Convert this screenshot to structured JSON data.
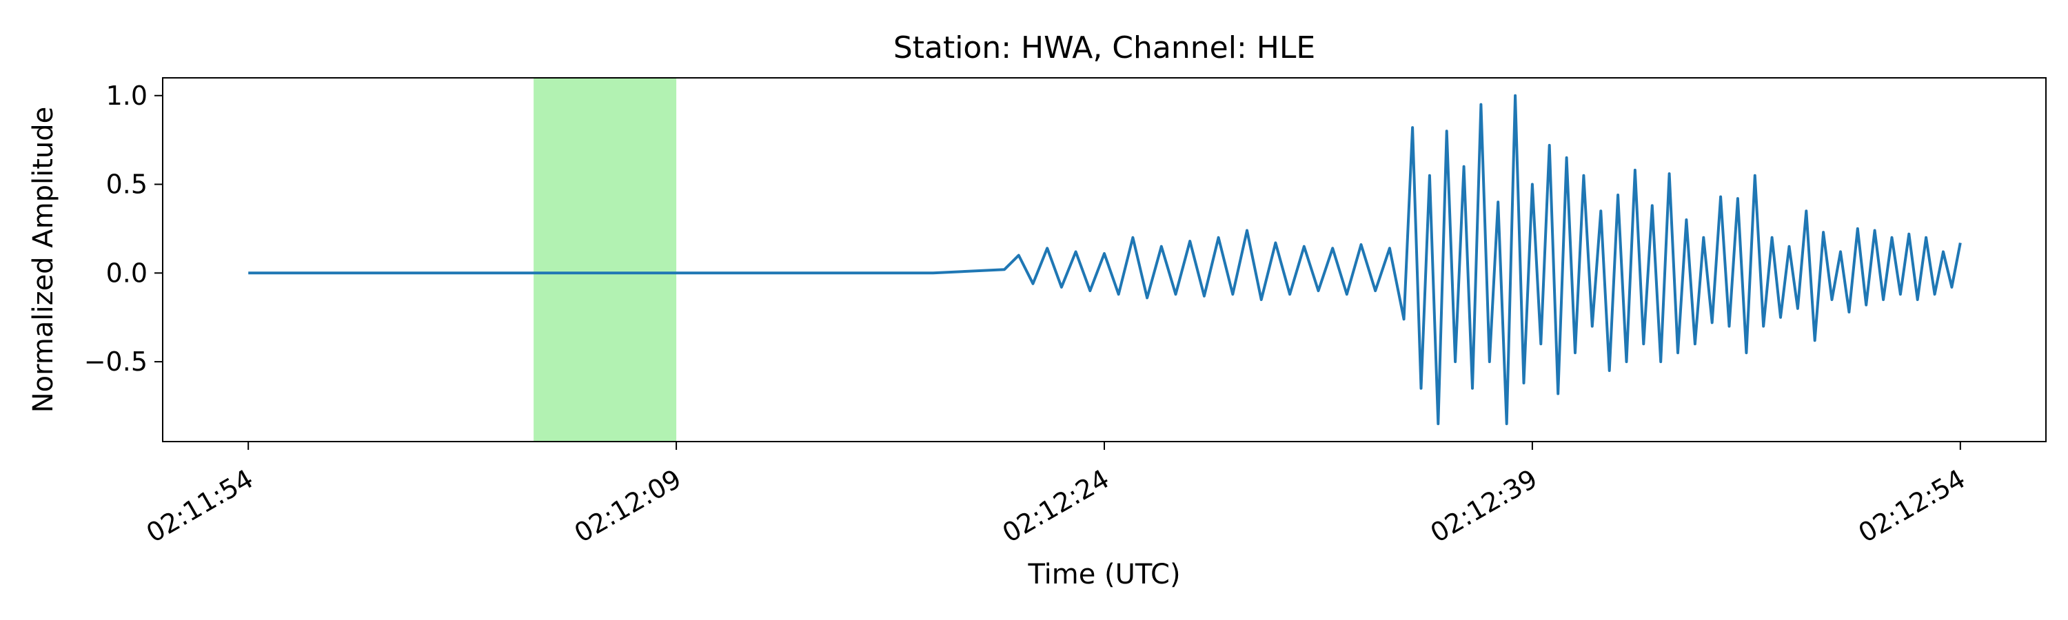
{
  "chart_data": {
    "type": "line",
    "title": "Station: HWA, Channel: HLE",
    "xlabel": "Time (UTC)",
    "ylabel": "Normalized Amplitude",
    "x_range": [
      "02:11:51",
      "02:12:57"
    ],
    "ylim": [
      -0.95,
      1.1
    ],
    "x_ticks": [
      "02:11:54",
      "02:12:09",
      "02:12:24",
      "02:12:39",
      "02:12:54"
    ],
    "y_ticks": [
      1.0,
      0.5,
      0.0,
      -0.5
    ],
    "y_tick_labels": [
      "1.0",
      "0.5",
      "0.0",
      "−0.5"
    ],
    "grid": false,
    "highlight": {
      "start": "02:12:04",
      "end": "02:12:09",
      "color": "#b2f2b2"
    },
    "series": [
      {
        "color": "#1f77b4",
        "points": [
          [
            "02:11:54",
            0.0
          ],
          [
            "02:12:00",
            0.0
          ],
          [
            "02:12:06",
            0.0
          ],
          [
            "02:12:12",
            0.0
          ],
          [
            "02:12:18",
            0.0
          ],
          [
            "02:12:20.5",
            0.02
          ],
          [
            "02:12:21",
            0.1
          ],
          [
            "02:12:21.5",
            -0.06
          ],
          [
            "02:12:22",
            0.14
          ],
          [
            "02:12:22.5",
            -0.08
          ],
          [
            "02:12:23",
            0.12
          ],
          [
            "02:12:23.5",
            -0.1
          ],
          [
            "02:12:24",
            0.11
          ],
          [
            "02:12:24.5",
            -0.12
          ],
          [
            "02:12:25",
            0.2
          ],
          [
            "02:12:25.5",
            -0.14
          ],
          [
            "02:12:26",
            0.15
          ],
          [
            "02:12:26.5",
            -0.12
          ],
          [
            "02:12:27",
            0.18
          ],
          [
            "02:12:27.5",
            -0.13
          ],
          [
            "02:12:28",
            0.2
          ],
          [
            "02:12:28.5",
            -0.12
          ],
          [
            "02:12:29",
            0.24
          ],
          [
            "02:12:29.5",
            -0.15
          ],
          [
            "02:12:30",
            0.17
          ],
          [
            "02:12:30.5",
            -0.12
          ],
          [
            "02:12:31",
            0.15
          ],
          [
            "02:12:31.5",
            -0.1
          ],
          [
            "02:12:32",
            0.14
          ],
          [
            "02:12:32.5",
            -0.12
          ],
          [
            "02:12:33",
            0.16
          ],
          [
            "02:12:33.5",
            -0.1
          ],
          [
            "02:12:34",
            0.14
          ],
          [
            "02:12:34.5",
            -0.26
          ],
          [
            "02:12:34.8",
            0.82
          ],
          [
            "02:12:35.1",
            -0.65
          ],
          [
            "02:12:35.4",
            0.55
          ],
          [
            "02:12:35.7",
            -0.85
          ],
          [
            "02:12:36",
            0.8
          ],
          [
            "02:12:36.3",
            -0.5
          ],
          [
            "02:12:36.6",
            0.6
          ],
          [
            "02:12:36.9",
            -0.65
          ],
          [
            "02:12:37.2",
            0.95
          ],
          [
            "02:12:37.5",
            -0.5
          ],
          [
            "02:12:37.8",
            0.4
          ],
          [
            "02:12:38.1",
            -0.85
          ],
          [
            "02:12:38.4",
            1.0
          ],
          [
            "02:12:38.7",
            -0.62
          ],
          [
            "02:12:39",
            0.5
          ],
          [
            "02:12:39.3",
            -0.4
          ],
          [
            "02:12:39.6",
            0.72
          ],
          [
            "02:12:39.9",
            -0.68
          ],
          [
            "02:12:40.2",
            0.65
          ],
          [
            "02:12:40.5",
            -0.45
          ],
          [
            "02:12:40.8",
            0.55
          ],
          [
            "02:12:41.1",
            -0.3
          ],
          [
            "02:12:41.4",
            0.35
          ],
          [
            "02:12:41.7",
            -0.55
          ],
          [
            "02:12:42",
            0.44
          ],
          [
            "02:12:42.3",
            -0.5
          ],
          [
            "02:12:42.6",
            0.58
          ],
          [
            "02:12:42.9",
            -0.4
          ],
          [
            "02:12:43.2",
            0.38
          ],
          [
            "02:12:43.5",
            -0.5
          ],
          [
            "02:12:43.8",
            0.56
          ],
          [
            "02:12:44.1",
            -0.45
          ],
          [
            "02:12:44.4",
            0.3
          ],
          [
            "02:12:44.7",
            -0.4
          ],
          [
            "02:12:45",
            0.2
          ],
          [
            "02:12:45.3",
            -0.28
          ],
          [
            "02:12:45.6",
            0.43
          ],
          [
            "02:12:45.9",
            -0.3
          ],
          [
            "02:12:46.2",
            0.42
          ],
          [
            "02:12:46.5",
            -0.45
          ],
          [
            "02:12:46.8",
            0.55
          ],
          [
            "02:12:47.1",
            -0.3
          ],
          [
            "02:12:47.4",
            0.2
          ],
          [
            "02:12:47.7",
            -0.25
          ],
          [
            "02:12:48",
            0.15
          ],
          [
            "02:12:48.3",
            -0.2
          ],
          [
            "02:12:48.6",
            0.35
          ],
          [
            "02:12:48.9",
            -0.38
          ],
          [
            "02:12:49.2",
            0.23
          ],
          [
            "02:12:49.5",
            -0.15
          ],
          [
            "02:12:49.8",
            0.12
          ],
          [
            "02:12:50.1",
            -0.22
          ],
          [
            "02:12:50.4",
            0.25
          ],
          [
            "02:12:50.7",
            -0.18
          ],
          [
            "02:12:51",
            0.24
          ],
          [
            "02:12:51.3",
            -0.15
          ],
          [
            "02:12:51.6",
            0.2
          ],
          [
            "02:12:51.9",
            -0.12
          ],
          [
            "02:12:52.2",
            0.22
          ],
          [
            "02:12:52.5",
            -0.15
          ],
          [
            "02:12:52.8",
            0.2
          ],
          [
            "02:12:53.1",
            -0.12
          ],
          [
            "02:12:53.4",
            0.12
          ],
          [
            "02:12:53.7",
            -0.08
          ],
          [
            "02:12:54",
            0.17
          ]
        ]
      }
    ]
  }
}
